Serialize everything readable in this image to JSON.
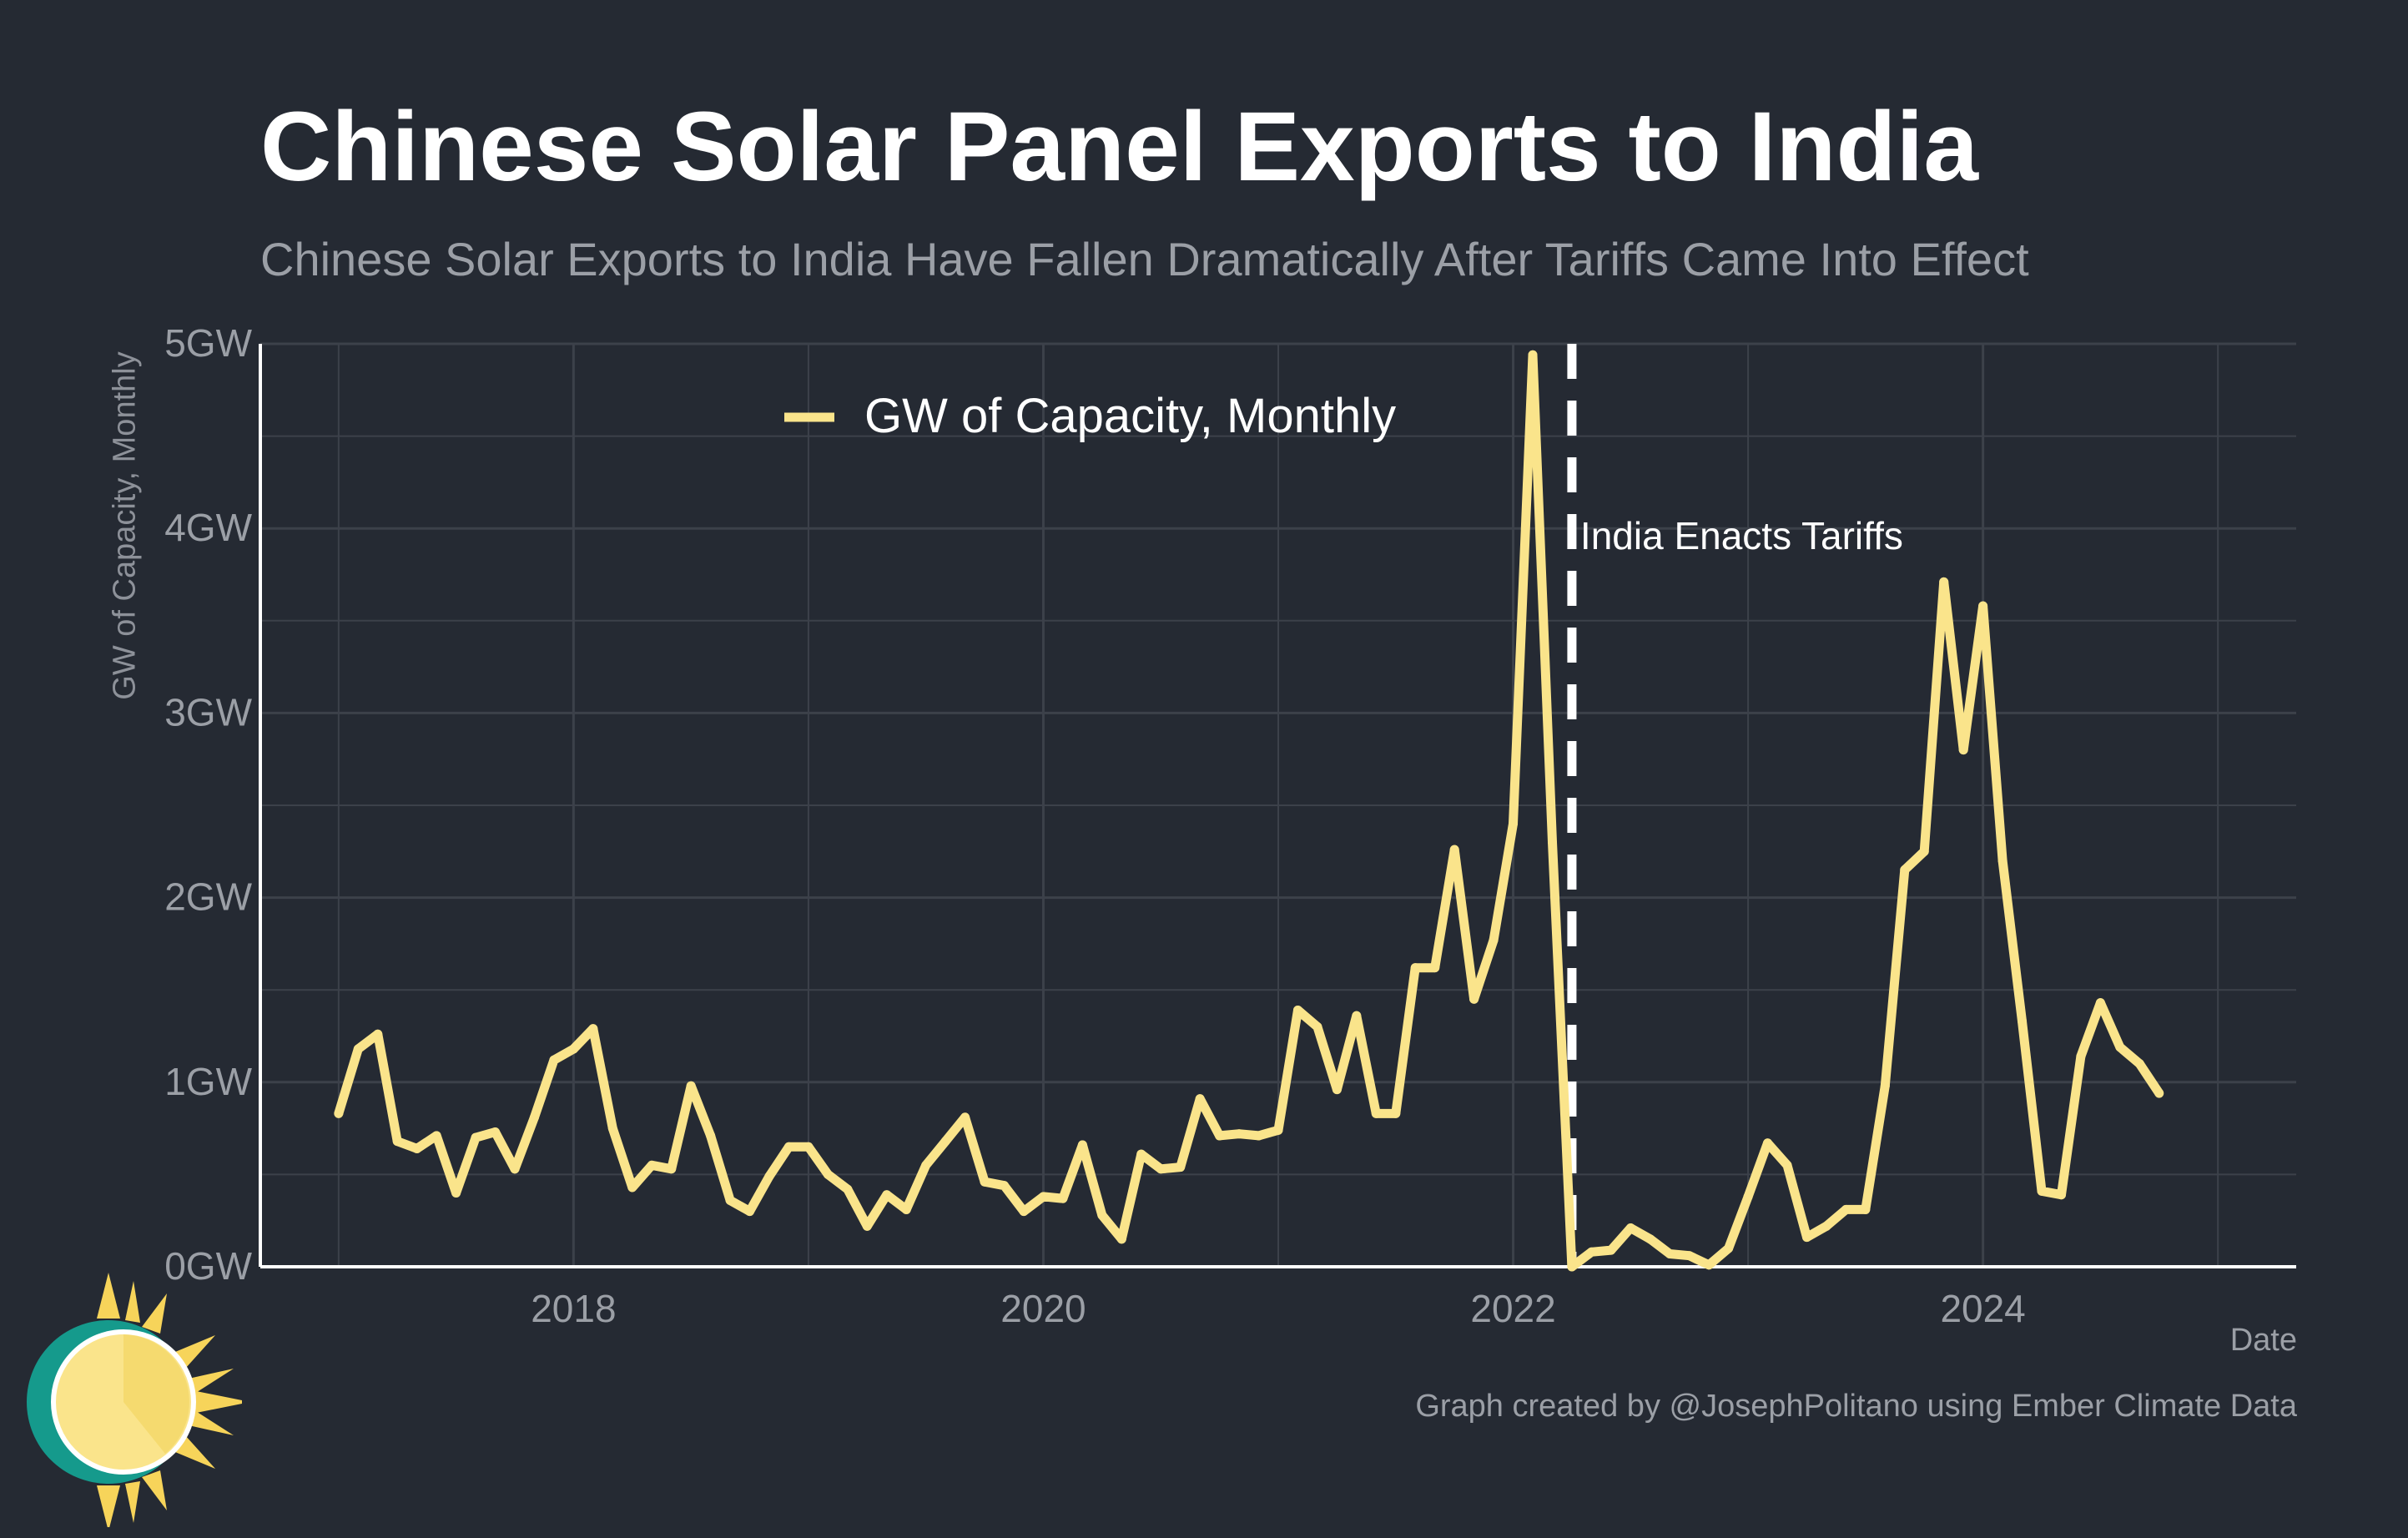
{
  "header": {
    "title": "Chinese Solar Panel Exports to India",
    "subtitle": "Chinese Solar Exports to India Have Fallen Dramatically After Tariffs Came Into Effect"
  },
  "footer": {
    "credit": "Graph created by @JosephPolitano using Ember Climate Data"
  },
  "logo": {
    "icon": "sun-icon"
  },
  "colors": {
    "background": "#252a33",
    "line": "#fae48b",
    "grid": "#3c414a",
    "axis": "#ffffff",
    "tick_text": "#9b9fa6"
  },
  "chart_data": {
    "type": "line",
    "title": "Chinese Solar Panel Exports to India",
    "subtitle": "Chinese Solar Exports to India Have Fallen Dramatically After Tariffs Came Into Effect",
    "xlabel": "Date",
    "ylabel": "GW of Capacity, Monthly",
    "xlim": [
      "2016-09",
      "2025-05"
    ],
    "ylim": [
      0,
      5
    ],
    "y_ticks": [
      0,
      1,
      2,
      3,
      4,
      5
    ],
    "y_tick_labels": [
      "0GW",
      "1GW",
      "2GW",
      "3GW",
      "4GW",
      "5GW"
    ],
    "x_ticks": [
      2018,
      2020,
      2022,
      2024
    ],
    "x_tick_labels": [
      "2018",
      "2020",
      "2022",
      "2024"
    ],
    "grid": true,
    "legend": {
      "position": "top-left"
    },
    "series": [
      {
        "name": "GW of Capacity, Monthly",
        "color": "#fae48b",
        "x": [
          "2017-01",
          "2017-02",
          "2017-03",
          "2017-04",
          "2017-05",
          "2017-06",
          "2017-07",
          "2017-08",
          "2017-09",
          "2017-10",
          "2017-11",
          "2017-12",
          "2018-01",
          "2018-02",
          "2018-03",
          "2018-04",
          "2018-05",
          "2018-06",
          "2018-07",
          "2018-08",
          "2018-09",
          "2018-10",
          "2018-11",
          "2018-12",
          "2019-01",
          "2019-02",
          "2019-03",
          "2019-04",
          "2019-05",
          "2019-06",
          "2019-07",
          "2019-08",
          "2019-09",
          "2019-10",
          "2019-11",
          "2019-12",
          "2020-01",
          "2020-02",
          "2020-03",
          "2020-04",
          "2020-05",
          "2020-06",
          "2020-07",
          "2020-08",
          "2020-09",
          "2020-10",
          "2020-11",
          "2020-12",
          "2021-01",
          "2021-02",
          "2021-03",
          "2021-04",
          "2021-05",
          "2021-06",
          "2021-07",
          "2021-08",
          "2021-09",
          "2021-10",
          "2021-11",
          "2021-12",
          "2022-01",
          "2022-02",
          "2022-03",
          "2022-04",
          "2022-05",
          "2022-06",
          "2022-07",
          "2022-08",
          "2022-09",
          "2022-10",
          "2022-11",
          "2022-12",
          "2023-01",
          "2023-02",
          "2023-03",
          "2023-04",
          "2023-05",
          "2023-06",
          "2023-07",
          "2023-08",
          "2023-09",
          "2023-10",
          "2023-11",
          "2023-12",
          "2024-01",
          "2024-02",
          "2024-03",
          "2024-04",
          "2024-05",
          "2024-06",
          "2024-07",
          "2024-08",
          "2024-09",
          "2024-10"
        ],
        "values": [
          0.83,
          1.18,
          1.26,
          0.68,
          0.64,
          0.71,
          0.4,
          0.7,
          0.73,
          0.53,
          0.81,
          1.12,
          1.18,
          1.29,
          0.75,
          0.43,
          0.55,
          0.53,
          0.98,
          0.71,
          0.36,
          0.3,
          0.49,
          0.65,
          0.65,
          0.5,
          0.42,
          0.22,
          0.39,
          0.31,
          0.55,
          0.68,
          0.81,
          0.46,
          0.44,
          0.3,
          0.38,
          0.37,
          0.66,
          0.28,
          0.15,
          0.61,
          0.53,
          0.54,
          0.91,
          0.71,
          0.72,
          0.71,
          0.74,
          1.39,
          1.3,
          0.96,
          1.36,
          0.83,
          0.83,
          1.62,
          1.62,
          2.26,
          1.45,
          1.77,
          2.4,
          4.94,
          2.3,
          0.0,
          0.08,
          0.09,
          0.21,
          0.15,
          0.07,
          0.06,
          0.01,
          0.1,
          0.38,
          0.67,
          0.55,
          0.16,
          0.22,
          0.31,
          0.31,
          0.98,
          2.15,
          2.25,
          3.71,
          2.8,
          3.58,
          2.2,
          1.33,
          0.41,
          0.39,
          1.14,
          1.43,
          1.19,
          1.1,
          0.94
        ]
      }
    ],
    "annotations": [
      {
        "type": "vline",
        "x": "2022-04",
        "style": "dashed",
        "color": "#ffffff",
        "text": "India Enacts Tariffs"
      }
    ]
  }
}
